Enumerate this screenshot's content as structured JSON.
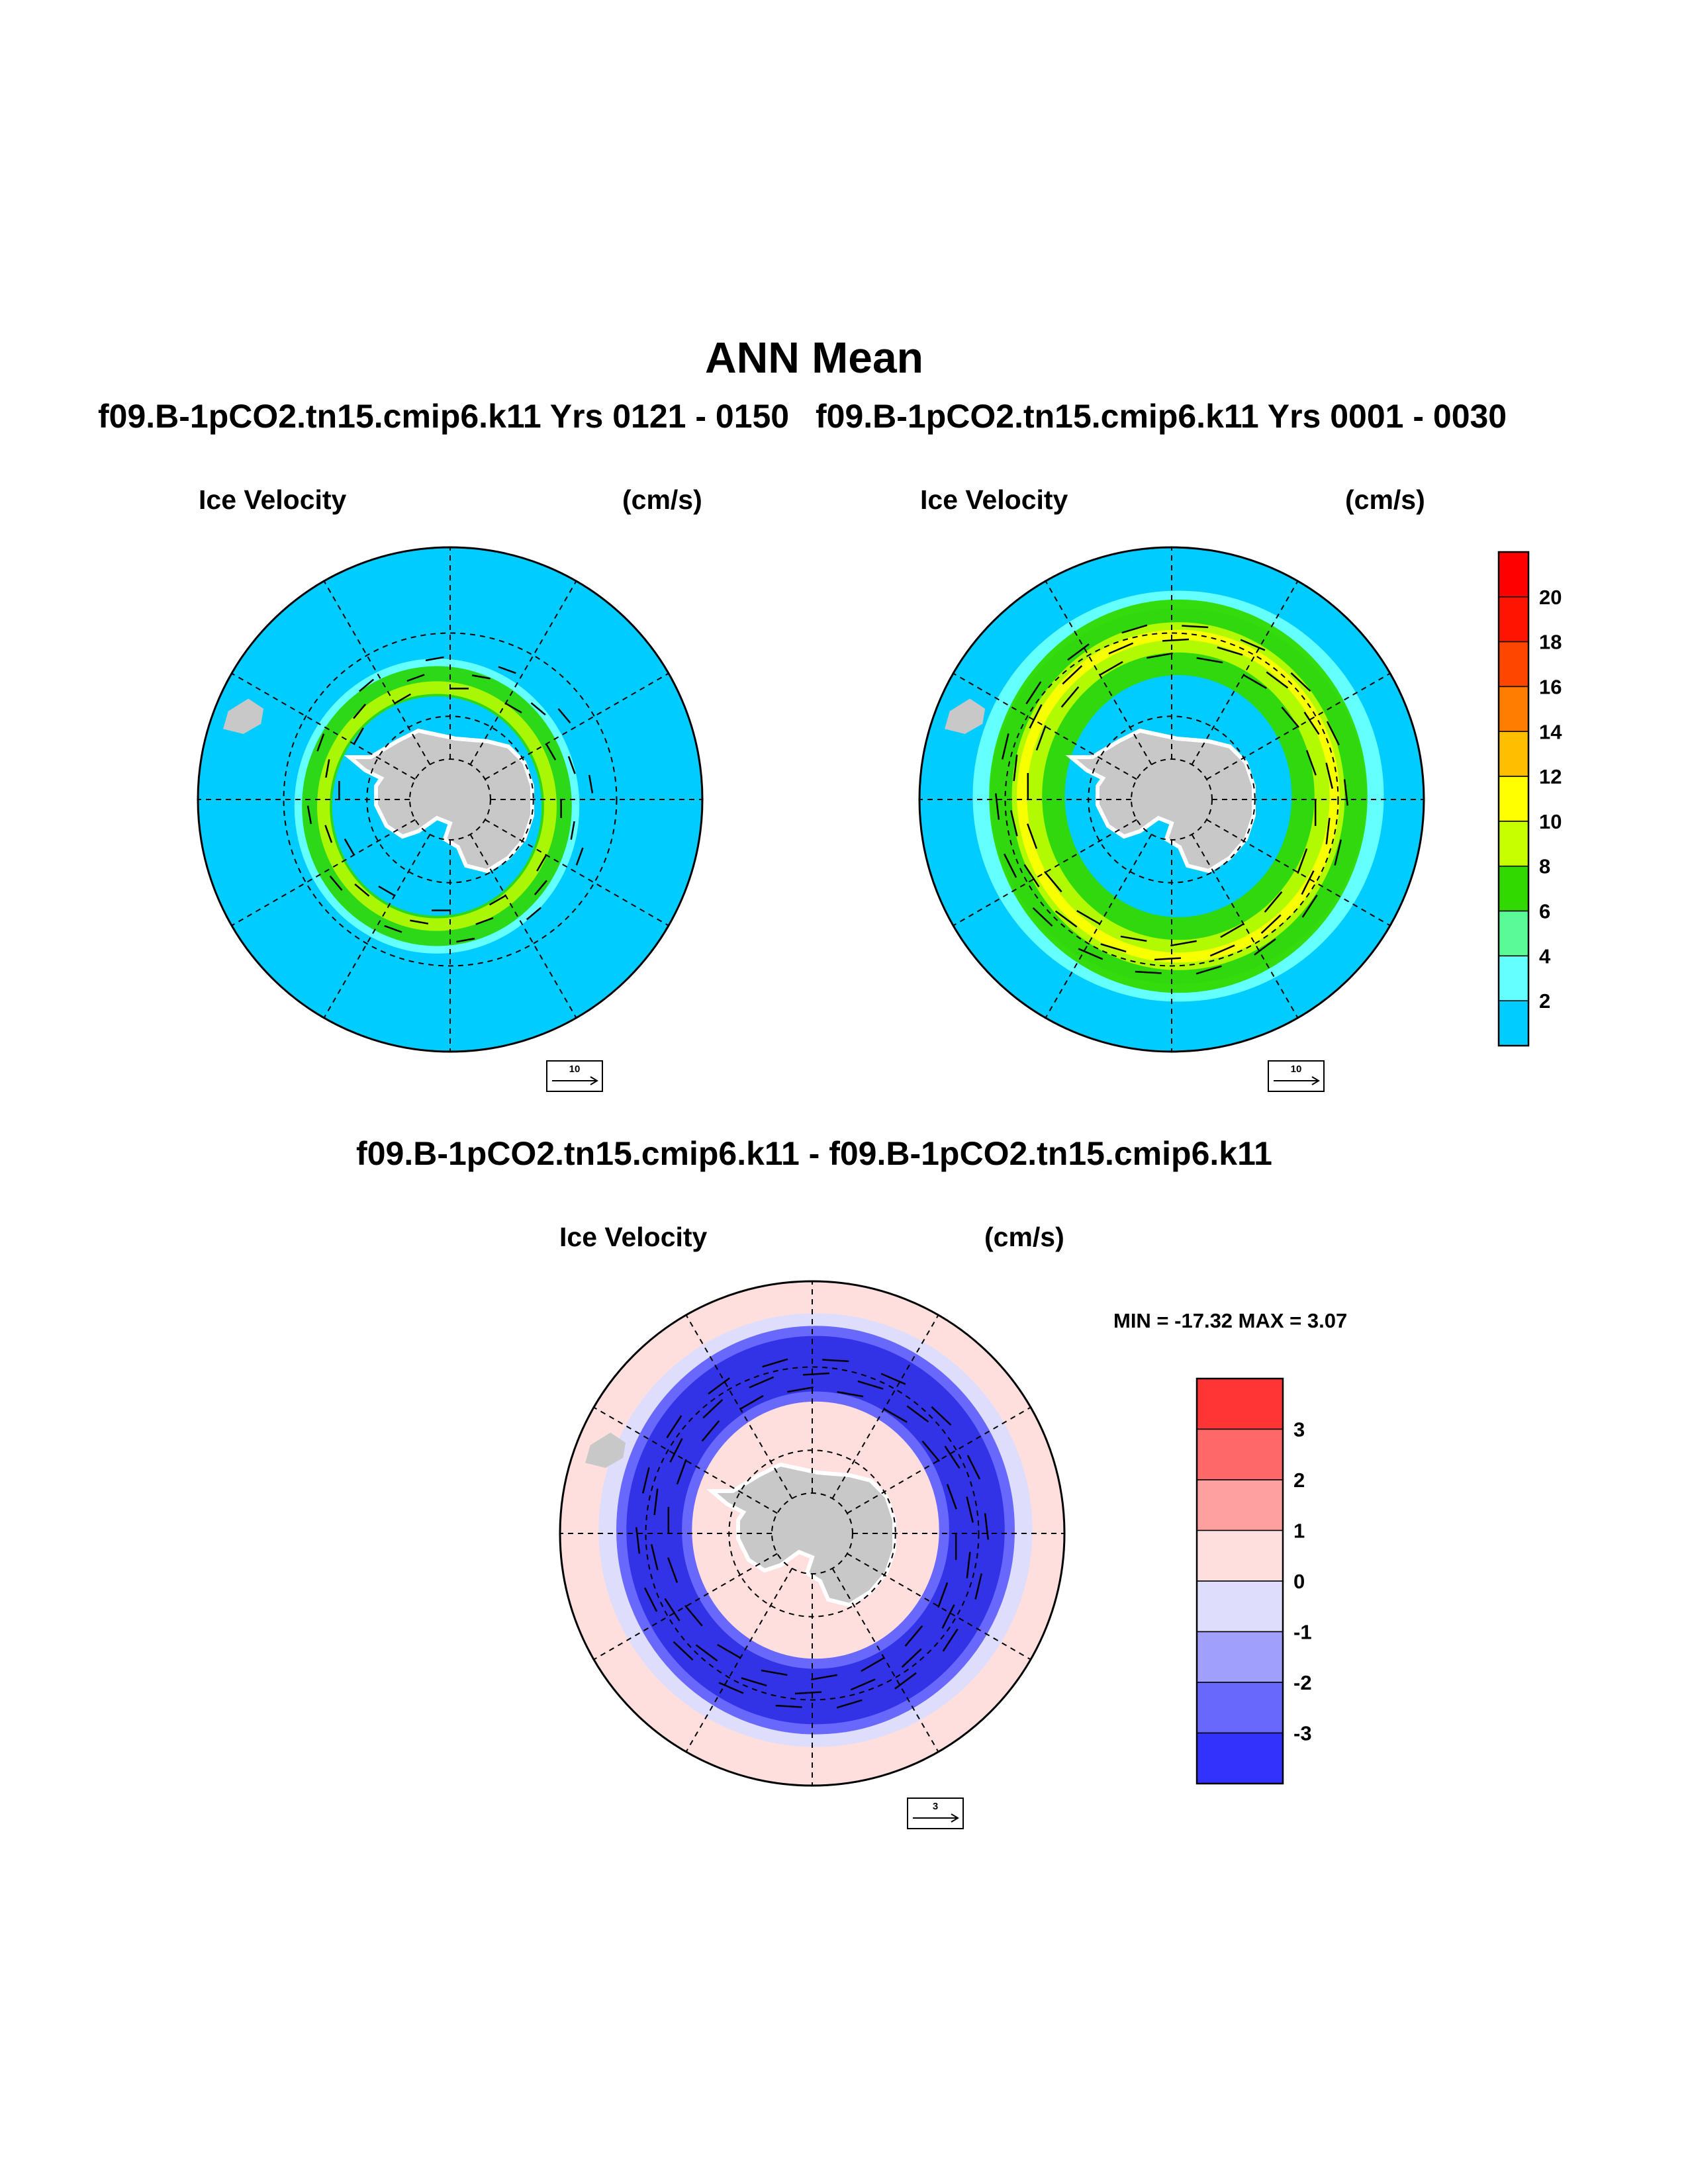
{
  "title": "ANN Mean",
  "panels": {
    "case_a": {
      "title": "f09.B-1pCO2.tn15.cmip6.k11  Yrs 0121 - 0150",
      "label_left": "Ice Velocity",
      "label_right": "(cm/s)",
      "ref_vector": "10"
    },
    "case_b": {
      "title": "f09.B-1pCO2.tn15.cmip6.k11  Yrs 0001 - 0030",
      "label_left": "Ice Velocity",
      "label_right": "(cm/s)",
      "ref_vector": "10"
    },
    "diff": {
      "title": "f09.B-1pCO2.tn15.cmip6.k11 - f09.B-1pCO2.tn15.cmip6.k11",
      "label_left": "Ice Velocity",
      "label_right": "(cm/s)",
      "minmax": "MIN = -17.32 MAX =   3.07",
      "ref_vector": "3"
    }
  },
  "chart_data": [
    {
      "type": "heatmap",
      "map": "south-polar-stereographic",
      "variable": "Ice Velocity",
      "units": "(cm/s)",
      "period": "Yrs 0121 - 0150",
      "ice_speed_range_cm_s": [
        0,
        16
      ],
      "reference_vector_cm_s": 10
    },
    {
      "type": "heatmap",
      "map": "south-polar-stereographic",
      "variable": "Ice Velocity",
      "units": "(cm/s)",
      "period": "Yrs 0001 - 0030",
      "ice_speed_range_cm_s": [
        0,
        16
      ],
      "reference_vector_cm_s": 10,
      "colorbar": {
        "labels": [
          "20",
          "18",
          "16",
          "14",
          "12",
          "10",
          "8",
          "6",
          "4",
          "2"
        ],
        "colors": [
          "#ff1400",
          "#ff4600",
          "#ff7d00",
          "#ffbe00",
          "#ffff00",
          "#c8ff00",
          "#32d900",
          "#5afa96",
          "#64ffff",
          "#00ccff"
        ]
      }
    },
    {
      "type": "heatmap",
      "map": "south-polar-stereographic",
      "variable": "Ice Velocity",
      "units": "(cm/s)",
      "min": -17.32,
      "max": 3.07,
      "reference_vector_cm_s": 3,
      "colorbar": {
        "labels": [
          "3",
          "2",
          "1",
          "0",
          "-1",
          "-2",
          "-3"
        ],
        "colors": [
          "#ff3434",
          "#ff6868",
          "#ffa0a0",
          "#ffdede",
          "#dedefc",
          "#a0a0fc",
          "#6868fc",
          "#3232fc"
        ]
      }
    }
  ],
  "colors": {
    "open_ocean": "#00ccff",
    "land": "#c8c8c8",
    "diff_background": "#ffdede",
    "diff_ice": "#3232e6"
  }
}
